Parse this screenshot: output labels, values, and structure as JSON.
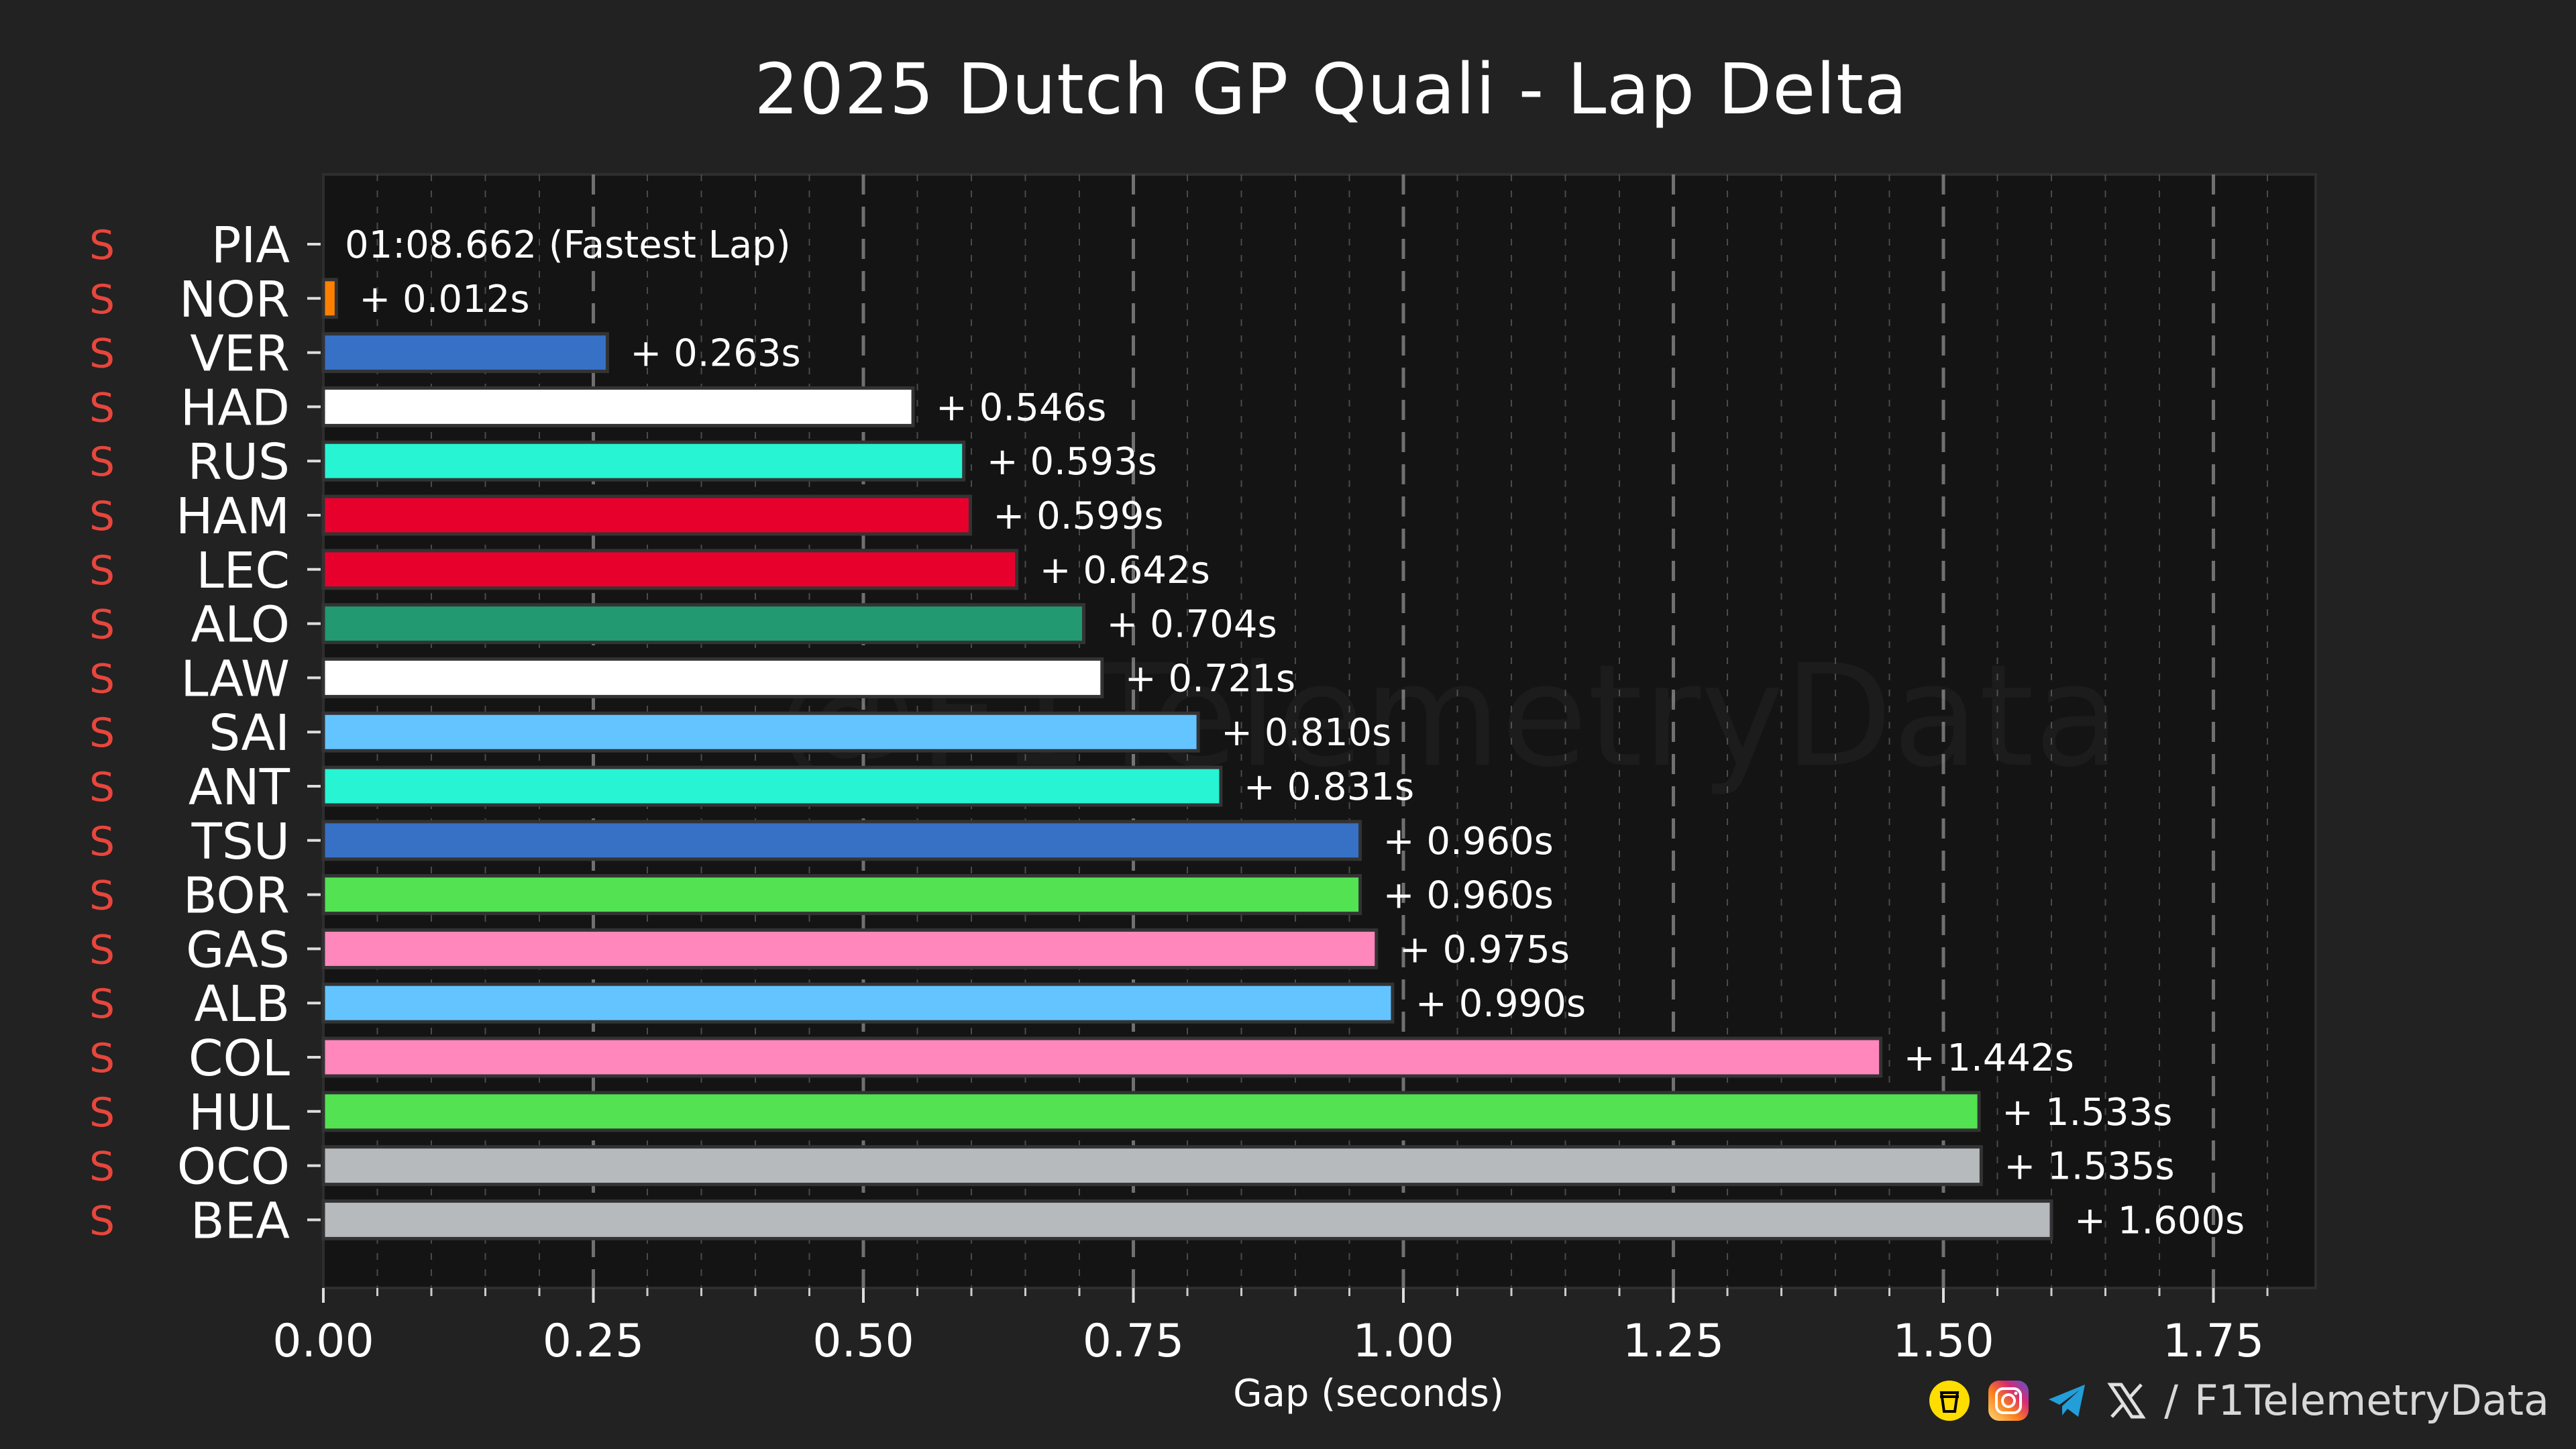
{
  "chart_data": {
    "type": "bar",
    "orientation": "horizontal",
    "title": "2025 Dutch GP Quali - Lap Delta",
    "xlabel": "Gap (seconds)",
    "ylabel": "",
    "xlim": [
      0,
      1.85
    ],
    "xticks": [
      "0.00",
      "0.25",
      "0.50",
      "0.75",
      "1.00",
      "1.25",
      "1.50",
      "1.75"
    ],
    "xtick_values": [
      0,
      0.25,
      0.5,
      0.75,
      1.0,
      1.25,
      1.5,
      1.75
    ],
    "grid": true,
    "watermark": "@F1TelemetryData",
    "fastest_lap_label": "01:08.662 (Fastest Lap)",
    "drivers": [
      {
        "code": "PIA",
        "tyre": "S",
        "gap": 0.0,
        "label": "01:08.662 (Fastest Lap)",
        "color": "#FF8000"
      },
      {
        "code": "NOR",
        "tyre": "S",
        "gap": 0.012,
        "label": "+ 0.012s",
        "color": "#FF8000"
      },
      {
        "code": "VER",
        "tyre": "S",
        "gap": 0.263,
        "label": "+ 0.263s",
        "color": "#3671C6"
      },
      {
        "code": "HAD",
        "tyre": "S",
        "gap": 0.546,
        "label": "+ 0.546s",
        "color": "#FFFFFF"
      },
      {
        "code": "RUS",
        "tyre": "S",
        "gap": 0.593,
        "label": "+ 0.593s",
        "color": "#27F4D2"
      },
      {
        "code": "HAM",
        "tyre": "S",
        "gap": 0.599,
        "label": "+ 0.599s",
        "color": "#E8002D"
      },
      {
        "code": "LEC",
        "tyre": "S",
        "gap": 0.642,
        "label": "+ 0.642s",
        "color": "#E8002D"
      },
      {
        "code": "ALO",
        "tyre": "S",
        "gap": 0.704,
        "label": "+ 0.704s",
        "color": "#229971"
      },
      {
        "code": "LAW",
        "tyre": "S",
        "gap": 0.721,
        "label": "+ 0.721s",
        "color": "#FFFFFF"
      },
      {
        "code": "SAI",
        "tyre": "S",
        "gap": 0.81,
        "label": "+ 0.810s",
        "color": "#64C4FF"
      },
      {
        "code": "ANT",
        "tyre": "S",
        "gap": 0.831,
        "label": "+ 0.831s",
        "color": "#27F4D2"
      },
      {
        "code": "TSU",
        "tyre": "S",
        "gap": 0.96,
        "label": "+ 0.960s",
        "color": "#3671C6"
      },
      {
        "code": "BOR",
        "tyre": "S",
        "gap": 0.96,
        "label": "+ 0.960s",
        "color": "#52E252"
      },
      {
        "code": "GAS",
        "tyre": "S",
        "gap": 0.975,
        "label": "+ 0.975s",
        "color": "#FF87BC"
      },
      {
        "code": "ALB",
        "tyre": "S",
        "gap": 0.99,
        "label": "+ 0.990s",
        "color": "#64C4FF"
      },
      {
        "code": "COL",
        "tyre": "S",
        "gap": 1.442,
        "label": "+ 1.442s",
        "color": "#FF87BC"
      },
      {
        "code": "HUL",
        "tyre": "S",
        "gap": 1.533,
        "label": "+ 1.533s",
        "color": "#52E252"
      },
      {
        "code": "OCO",
        "tyre": "S",
        "gap": 1.535,
        "label": "+ 1.535s",
        "color": "#B6BABD"
      },
      {
        "code": "BEA",
        "tyre": "S",
        "gap": 1.6,
        "label": "+ 1.600s",
        "color": "#B6BABD"
      }
    ]
  },
  "colors": {
    "background": "#222222",
    "plot_background": "#141414",
    "grid_major": "#707070",
    "grid_minor": "#4a4a4a",
    "tyre_soft": "#E8463C",
    "text": "#FFFFFF"
  },
  "footer": {
    "handle": "F1TelemetryData",
    "separator": "/",
    "icons": [
      "buymeacoffee-icon",
      "instagram-icon",
      "telegram-icon",
      "x-icon"
    ]
  }
}
